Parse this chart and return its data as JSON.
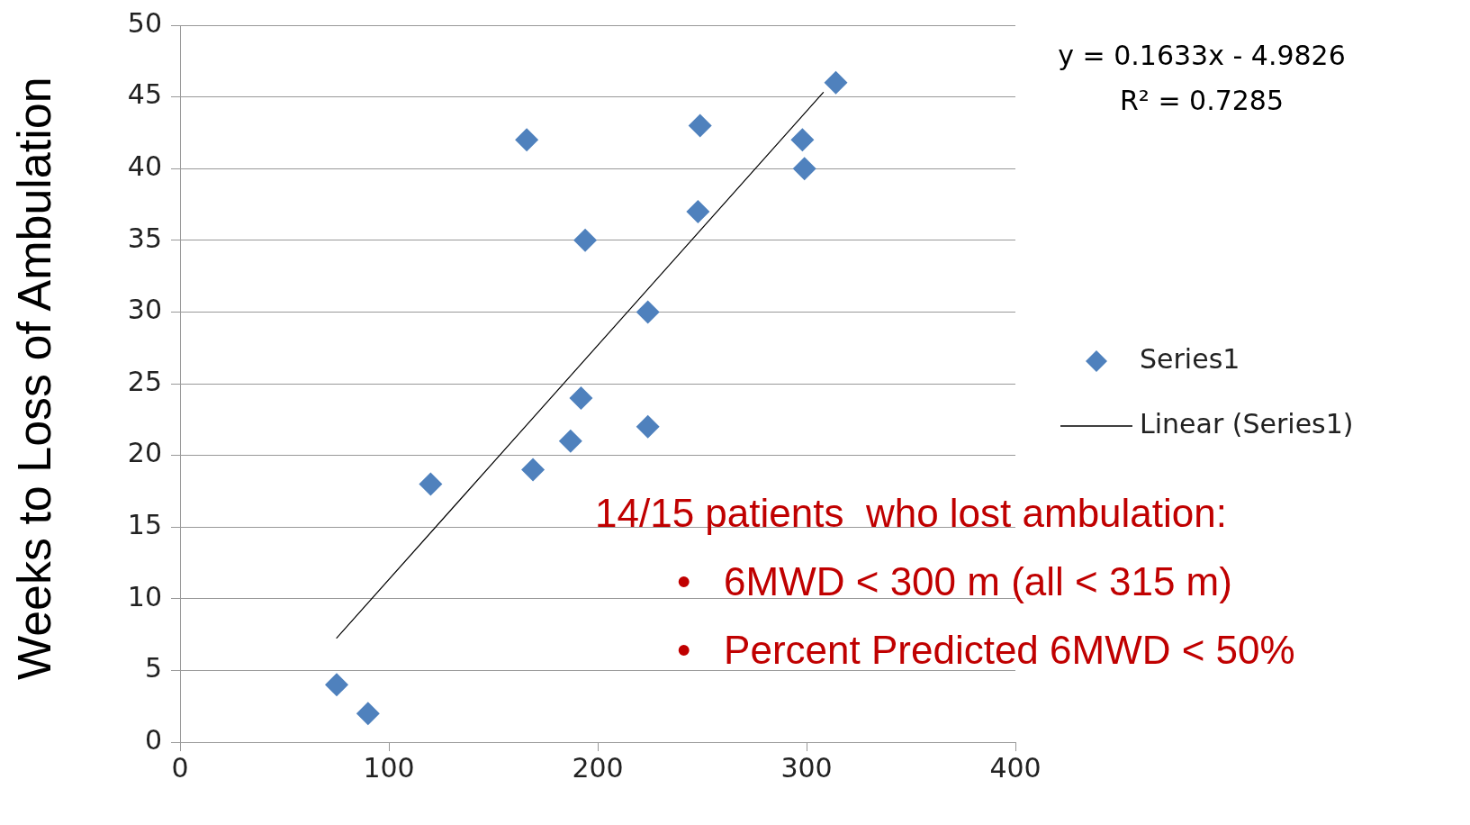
{
  "chart_data": {
    "type": "scatter",
    "ylabel": "Weeks to Loss of Ambulation",
    "xlim": [
      0,
      400
    ],
    "xticks": [
      0,
      100,
      200,
      300,
      400
    ],
    "ylim": [
      0,
      50
    ],
    "yticks": [
      0,
      5,
      10,
      15,
      20,
      25,
      30,
      35,
      40,
      45,
      50
    ],
    "grid": "y",
    "legend": "right",
    "marker": "diamond",
    "series": [
      {
        "name": "Series1",
        "type": "scatter",
        "color": "#4f81bd",
        "x": [
          75,
          90,
          120,
          166,
          169,
          187,
          192,
          194,
          224,
          224,
          249,
          248,
          298,
          299,
          314
        ],
        "values": [
          4,
          2,
          18,
          42,
          19,
          21,
          24,
          35,
          30,
          22,
          43,
          37,
          42,
          40,
          46
        ]
      },
      {
        "name": "Linear (Series1)",
        "type": "line",
        "marker": "none",
        "color": "#000000",
        "x": [
          75,
          308
        ],
        "values": [
          7.26,
          45.31
        ]
      }
    ],
    "annotations": [
      "y = 0.1633x - 4.9826",
      "R² = 0.7285",
      "14/15 patients  who lost ambulation:",
      "•   6MWD < 300 m (all < 315 m)",
      "•   Percent Predicted 6MWD < 50%"
    ]
  }
}
